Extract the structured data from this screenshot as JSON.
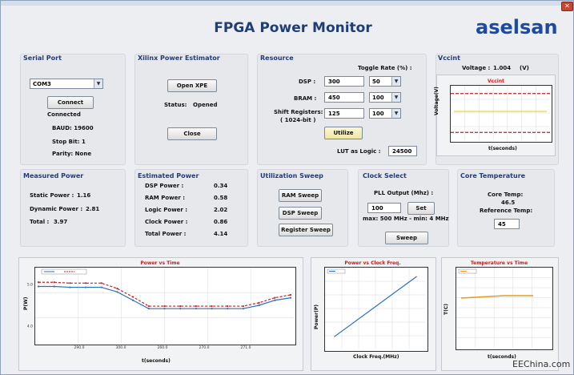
{
  "window": {
    "title": "FPGA Power Monitor",
    "logo": "aselsan",
    "close_glyph": "✕"
  },
  "serial_port": {
    "title": "Serial Port",
    "port_value": "COM3",
    "connect_label": "Connect",
    "status": "Connected",
    "baud": "BAUD: 19600",
    "stop_bit": "Stop Bit: 1",
    "parity": "Parity: None"
  },
  "xpe": {
    "title": "Xilinx Power Estimator",
    "open_label": "Open XPE",
    "status_label": "Status:",
    "status_value": "Opened",
    "close_label": "Close"
  },
  "resource": {
    "title": "Resource",
    "toggle_header": "Toggle Rate (%) :",
    "rows": [
      {
        "label": "DSP :",
        "value": "300",
        "toggle": "50"
      },
      {
        "label": "BRAM :",
        "value": "450",
        "toggle": "100"
      },
      {
        "label": "Shift Registers:",
        "sublabel": "( 1024-bit )",
        "value": "125",
        "toggle": "100"
      }
    ],
    "utilize_label": "Utilize",
    "lut_label": "LUT as Logic :",
    "lut_value": "24500"
  },
  "vccint": {
    "title": "Vccint",
    "voltage_label": "Voltage :",
    "voltage_value": "1.004",
    "voltage_unit": "(V)",
    "chart_title": "Vccint",
    "ylabel": "Voltage(V)",
    "xlabel": "t(seconds)"
  },
  "measured_power": {
    "title": "Measured Power",
    "rows": [
      {
        "label": "Static Power :",
        "value": "1.16"
      },
      {
        "label": "Dynamic Power :",
        "value": "2.81"
      },
      {
        "label": "Total :",
        "value": "3.97"
      }
    ]
  },
  "estimated_power": {
    "title": "Estimated Power",
    "rows": [
      {
        "label": "DSP Power :",
        "value": "0.34"
      },
      {
        "label": "RAM Power :",
        "value": "0.58"
      },
      {
        "label": "Logic Power :",
        "value": "2.02"
      },
      {
        "label": "Clock Power :",
        "value": "0.86"
      },
      {
        "label": "Total Power :",
        "value": "4.14"
      }
    ]
  },
  "utilization_sweep": {
    "title": "Utilization Sweep",
    "ram_label": "RAM Sweep",
    "dsp_label": "DSP Sweep",
    "register_label": "Register Sweep"
  },
  "clock_select": {
    "title": "Clock Select",
    "pll_label": "PLL Output (Mhz) :",
    "pll_value": "100",
    "set_label": "Set",
    "range_text": "max: 500 MHz - min: 4 MHz",
    "sweep_label": "Sweep"
  },
  "core_temp": {
    "title": "Core Temperature",
    "core_label": "Core Temp:",
    "core_value": "46.5",
    "ref_label": "Reference Temp:",
    "ref_value": "45"
  },
  "colors": {
    "accent": "#1f3e78",
    "logo": "#1c4aa3",
    "chart_title": "#d11a1a",
    "series_blue": "#2b6fc2",
    "series_red": "#d11a1a",
    "series_orange": "#e89a1c",
    "vcc_yellow": "#e8d21c"
  },
  "chart_data": [
    {
      "type": "line",
      "title": "Vccint",
      "xlabel": "t(seconds)",
      "ylabel": "Voltage(V)",
      "series": [
        {
          "values": [
            1.004,
            1.004,
            1.004,
            1.004,
            1.004,
            1.004
          ]
        }
      ],
      "limits": [
        1.05,
        0.95
      ],
      "ylim": [
        0.93,
        1.07
      ]
    },
    {
      "type": "line",
      "title": "Power vs Time",
      "xlabel": "t(seconds)",
      "ylabel": "P(W)",
      "x": [
        288.0,
        289.0,
        290.0,
        291.0,
        292.0,
        293.0,
        294.0,
        295.0,
        296.0,
        297.0,
        298.0,
        299.0,
        300.0,
        301.0,
        302.0,
        303.0,
        304.0
      ],
      "x_ticks": [
        "290.0",
        "300.0",
        "260.0",
        "270.0",
        "271.0"
      ],
      "y_ticks": [
        "5.0",
        "4.0"
      ],
      "series": [
        {
          "color": "blue",
          "values": [
            4.95,
            4.95,
            4.93,
            4.93,
            4.93,
            4.82,
            4.62,
            4.42,
            4.42,
            4.42,
            4.42,
            4.42,
            4.42,
            4.42,
            4.5,
            4.62,
            4.68
          ]
        },
        {
          "color": "red-dashed",
          "values": [
            5.05,
            5.05,
            5.03,
            5.03,
            5.03,
            4.9,
            4.7,
            4.48,
            4.48,
            4.48,
            4.48,
            4.48,
            4.48,
            4.48,
            4.56,
            4.68,
            4.75
          ]
        }
      ],
      "ylim": [
        3.6,
        5.4
      ]
    },
    {
      "type": "line",
      "title": "Power vs Clock Freq.",
      "xlabel": "Clock Freq.(MHz)",
      "ylabel": "Power(P)",
      "x": [
        10,
        100
      ],
      "series": [
        {
          "color": "blue",
          "values": [
            1.0,
            5.8
          ]
        }
      ],
      "xlim": [
        0,
        110
      ],
      "ylim": [
        0,
        6.5
      ]
    },
    {
      "type": "line",
      "title": "Temperature vs Time",
      "xlabel": "t(seconds)",
      "ylabel": "T(C)",
      "series": [
        {
          "color": "orange",
          "values": [
            46.2,
            46.3,
            46.4,
            46.5,
            46.5,
            46.5
          ]
        }
      ],
      "ylim": [
        40,
        50
      ]
    }
  ],
  "watermark": "EEChina.com"
}
